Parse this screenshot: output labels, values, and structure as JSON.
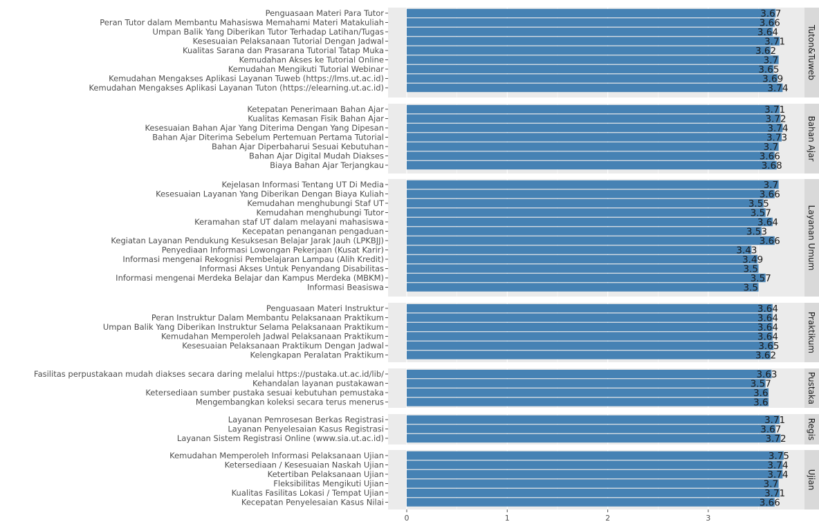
{
  "chart_data": {
    "type": "bar",
    "orientation": "horizontal",
    "title": "",
    "xlabel": "",
    "ylabel": "",
    "xlim": [
      0,
      4
    ],
    "x_ticks": [
      0,
      1,
      2,
      3
    ],
    "grid": true,
    "bar_color": "#4682B4",
    "panel_background": "#EBEBEB",
    "strip_background": "#D9D9D9",
    "facets": [
      {
        "name": "Tuton&Tuweb",
        "categories": [
          "Penguasaan Materi Para Tutor",
          "Peran Tutor dalam Membantu Mahasiswa Memahami Materi Matakuliah",
          "Umpan Balik Yang Diberikan Tutor Terhadap Latihan/Tugas",
          "Kesesuaian Pelaksanaan Tutorial Dengan Jadwal",
          "Kualitas Sarana dan Prasarana Tutorial Tatap Muka",
          "Kemudahan Akses ke Tutorial Online",
          "Kemudahan Mengikuti Tutorial Webinar",
          "Kemudahan Mengakses Aplikasi Layanan Tuweb (https://lms.ut.ac.id)",
          "Kemudahan Mengakses Aplikasi Layanan Tuton (https://elearning.ut.ac.id)"
        ],
        "values": [
          3.67,
          3.66,
          3.64,
          3.71,
          3.62,
          3.7,
          3.65,
          3.69,
          3.74
        ],
        "value_labels": [
          "3.67",
          "3.66",
          "3.64",
          "3.71",
          "3.62",
          "3.7",
          "3.65",
          "3.69",
          "3.74"
        ]
      },
      {
        "name": "Bahan Ajar",
        "categories": [
          "Ketepatan Penerimaan Bahan Ajar",
          "Kualitas Kemasan Fisik Bahan Ajar",
          "Kesesuaian Bahan Ajar Yang Diterima Dengan Yang Dipesan",
          "Bahan Ajar Diterima Sebelum Pertemuan Pertama Tutorial",
          "Bahan Ajar Diperbaharui Sesuai Kebutuhan",
          "Bahan Ajar Digital Mudah Diakses",
          "Biaya Bahan Ajar Terjangkau"
        ],
        "values": [
          3.71,
          3.72,
          3.74,
          3.73,
          3.7,
          3.66,
          3.68
        ],
        "value_labels": [
          "3.71",
          "3.72",
          "3.74",
          "3.73",
          "3.7",
          "3.66",
          "3.68"
        ]
      },
      {
        "name": "Layanan Umum",
        "categories": [
          "Kejelasan Informasi Tentang UT Di Media",
          "Kesesuaian Layanan Yang Diberikan Dengan Biaya Kuliah",
          "Kemudahan menghubungi Staf UT",
          "Kemudahan menghubungi Tutor",
          "Keramahan staf UT dalam melayani mahasiswa",
          "Kecepatan penanganan pengaduan",
          "Kegiatan Layanan Pendukung Kesuksesan Belajar Jarak Jauh (LPKBJJ)",
          "Penyediaan Informasi Lowongan Pekerjaan (Kusat Karir)",
          "Informasi mengenai Rekognisi Pembelajaran Lampau (Alih Kredit)",
          "Informasi Akses Untuk Penyandang Disabilitas",
          "Informasi mengenai Merdeka Belajar dan Kampus Merdeka (MBKM)",
          "Informasi Beasiswa"
        ],
        "values": [
          3.7,
          3.66,
          3.55,
          3.57,
          3.64,
          3.53,
          3.66,
          3.43,
          3.49,
          3.5,
          3.57,
          3.5
        ],
        "value_labels": [
          "3.7",
          "3.66",
          "3.55",
          "3.57",
          "3.64",
          "3.53",
          "3.66",
          "3.43",
          "3.49",
          "3.5",
          "3.57",
          "3.5"
        ]
      },
      {
        "name": "Praktikum",
        "categories": [
          "Penguasaan Materi Instruktur",
          "Peran Instruktur Dalam Membantu Pelaksanaan Praktikum",
          "Umpan Balik Yang Diberikan Instruktur Selama Pelaksanaan Praktikum",
          "Kemudahan Memperoleh Jadwal Pelaksanaan Praktikum",
          "Kesesuaian Pelaksanaan Praktikum Dengan Jadwal",
          "Kelengkapan Peralatan Praktikum"
        ],
        "values": [
          3.64,
          3.64,
          3.64,
          3.64,
          3.65,
          3.62
        ],
        "value_labels": [
          "3.64",
          "3.64",
          "3.64",
          "3.64",
          "3.65",
          "3.62"
        ]
      },
      {
        "name": "Pustaka",
        "categories": [
          "Fasilitas perpustakaan mudah diakses secara daring melalui https://pustaka.ut.ac.id/lib/",
          "Kehandalan layanan pustakawan",
          "Ketersediaan sumber pustaka sesuai kebutuhan pemustaka",
          "Mengembangkan koleksi secara terus menerus"
        ],
        "values": [
          3.63,
          3.57,
          3.6,
          3.6
        ],
        "value_labels": [
          "3.63",
          "3.57",
          "3.6",
          "3.6"
        ]
      },
      {
        "name": "Regis",
        "categories": [
          "Layanan Pemrosesan Berkas Registrasi",
          "Layanan Penyelesaian Kasus Registrasi",
          "Layanan Sistem Registrasi Online (www.sia.ut.ac.id)"
        ],
        "values": [
          3.71,
          3.67,
          3.72
        ],
        "value_labels": [
          "3.71",
          "3.67",
          "3.72"
        ]
      },
      {
        "name": "Ujian",
        "categories": [
          "Kemudahan Memperoleh Informasi Pelaksanaan Ujian",
          "Ketersediaan / Kesesuaian Naskah Ujian",
          "Ketertiban Pelaksanaan Ujian",
          "Fleksibilitas Mengikuti Ujian",
          "Kualitas Fasilitas Lokasi / Tempat Ujian",
          "Kecepatan Penyelesaian Kasus Nilai"
        ],
        "values": [
          3.75,
          3.74,
          3.74,
          3.7,
          3.71,
          3.66
        ],
        "value_labels": [
          "3.75",
          "3.74",
          "3.74",
          "3.7",
          "3.71",
          "3.66"
        ]
      }
    ]
  }
}
